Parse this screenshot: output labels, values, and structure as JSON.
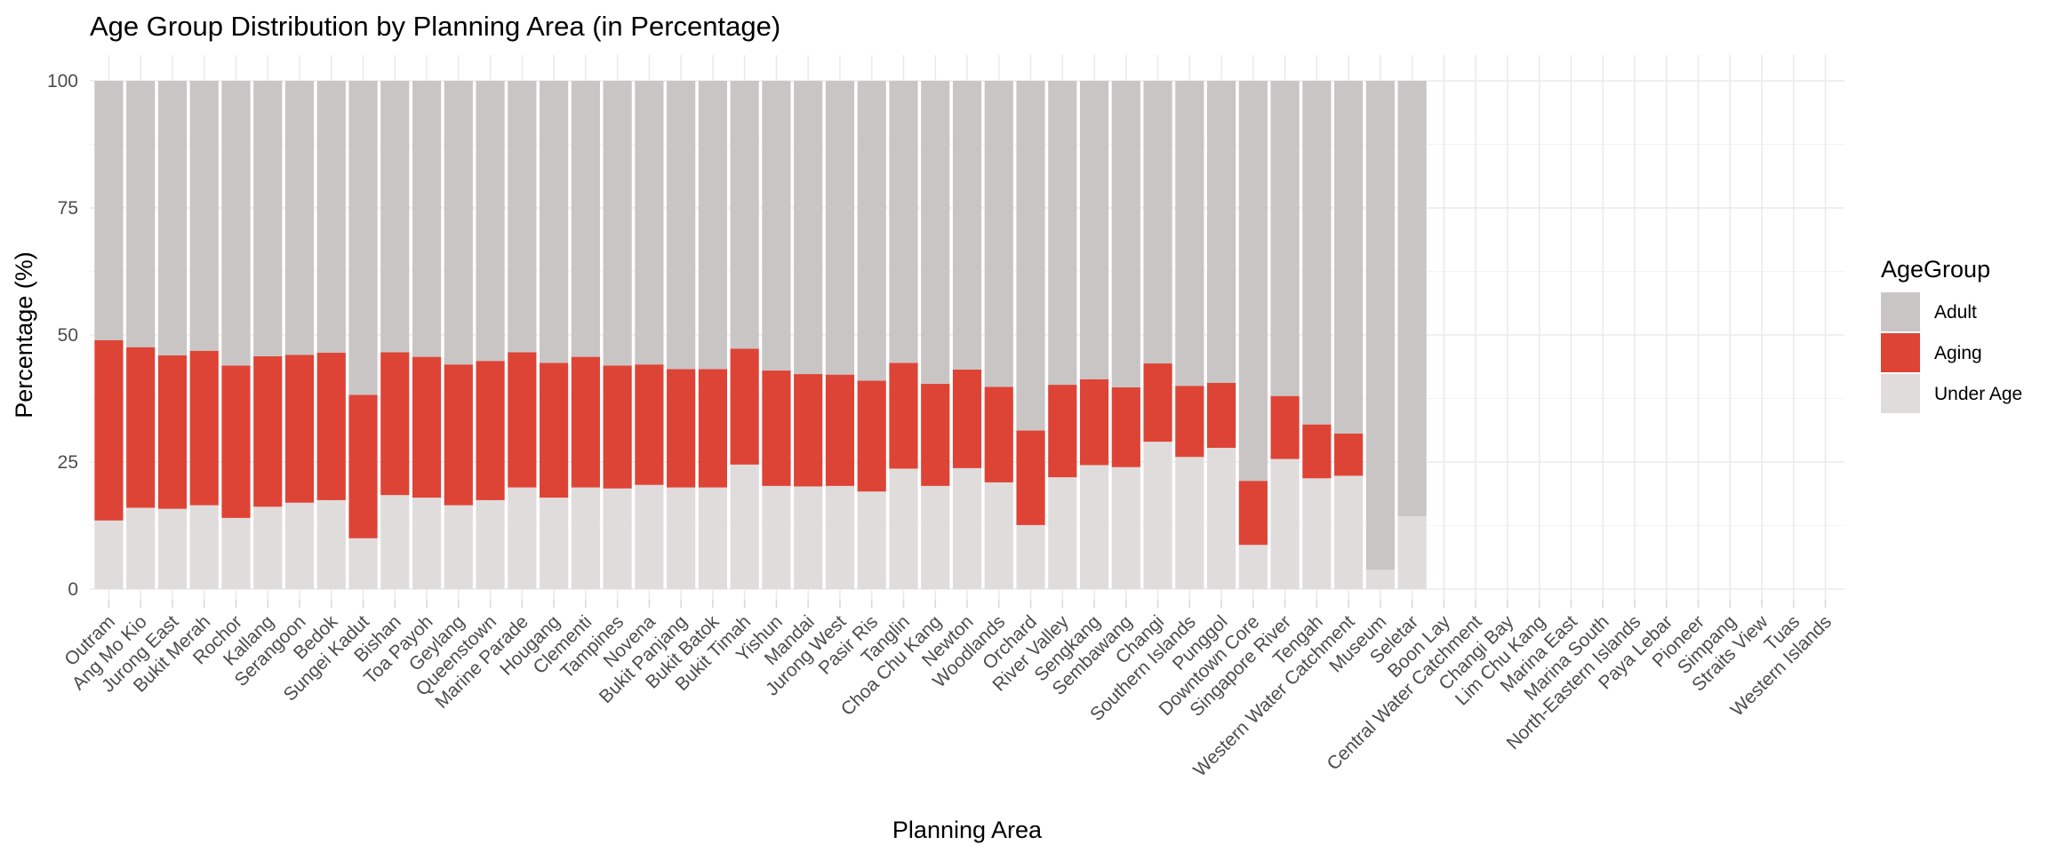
{
  "chart_data": {
    "type": "bar",
    "stacked": true,
    "title": "Age Group Distribution by Planning Area (in Percentage)",
    "xlabel": "Planning Area",
    "ylabel": "Percentage (%)",
    "ylim": [
      0,
      100
    ],
    "yticks": [
      0,
      25,
      50,
      75,
      100
    ],
    "grid": true,
    "legend": {
      "title": "AgeGroup",
      "position": "right"
    },
    "categories": [
      "Outram",
      "Ang Mo Kio",
      "Jurong East",
      "Bukit Merah",
      "Rochor",
      "Kallang",
      "Serangoon",
      "Bedok",
      "Sungei Kadut",
      "Bishan",
      "Toa Payoh",
      "Geylang",
      "Queenstown",
      "Marine Parade",
      "Hougang",
      "Clementi",
      "Tampines",
      "Novena",
      "Bukit Panjang",
      "Bukit Batok",
      "Bukit Timah",
      "Yishun",
      "Mandai",
      "Jurong West",
      "Pasir Ris",
      "Tanglin",
      "Choa Chu Kang",
      "Newton",
      "Woodlands",
      "Orchard",
      "River Valley",
      "Sengkang",
      "Sembawang",
      "Changi",
      "Southern Islands",
      "Punggol",
      "Downtown Core",
      "Singapore River",
      "Tengah",
      "Western Water Catchment",
      "Museum",
      "Seletar",
      "Boon Lay",
      "Central Water Catchment",
      "Changi Bay",
      "Lim Chu Kang",
      "Marina East",
      "Marina South",
      "North-Eastern Islands",
      "Paya Lebar",
      "Pioneer",
      "Simpang",
      "Straits View",
      "Tuas",
      "Western Islands"
    ],
    "series": [
      {
        "name": "Under Age",
        "color": "#e0dcdc",
        "values": [
          13.5,
          16,
          15.8,
          16.5,
          14,
          16.2,
          17,
          17.5,
          10,
          18.5,
          18,
          16.5,
          17.5,
          20,
          18,
          20,
          19.8,
          20.5,
          20,
          20,
          24.5,
          20.3,
          20.2,
          20.3,
          19.2,
          23.7,
          20.3,
          23.8,
          21,
          12.6,
          22,
          24.4,
          24,
          29,
          26,
          27.8,
          8.7,
          25.6,
          21.8,
          22.3,
          3.8,
          14.3,
          0,
          0,
          0,
          0,
          0,
          0,
          0,
          0,
          0,
          0,
          0,
          0,
          0
        ]
      },
      {
        "name": "Aging",
        "color": "#dd4436",
        "values": [
          35.5,
          31.6,
          30.2,
          30.4,
          30,
          29.6,
          29.1,
          29,
          28.2,
          28.1,
          27.7,
          27.7,
          27.4,
          26.6,
          26.5,
          25.7,
          24.2,
          23.7,
          23.3,
          23.3,
          22.8,
          22.7,
          22.1,
          21.9,
          21.8,
          20.8,
          20.1,
          19.4,
          18.8,
          18.6,
          18.2,
          16.9,
          15.7,
          15.4,
          14,
          12.8,
          12.6,
          12.4,
          10.6,
          8.3,
          0,
          0,
          0,
          0,
          0,
          0,
          0,
          0,
          0,
          0,
          0,
          0,
          0,
          0,
          0
        ]
      },
      {
        "name": "Adult",
        "color": "#c9c5c4",
        "values": [
          51,
          52.4,
          54,
          53.1,
          56,
          54.2,
          53.9,
          53.5,
          61.8,
          53.4,
          54.3,
          55.8,
          55.1,
          53.4,
          55.5,
          54.3,
          56,
          55.8,
          56.7,
          56.7,
          52.7,
          57,
          57.7,
          57.8,
          59,
          55.5,
          59.6,
          56.8,
          60.2,
          68.8,
          59.8,
          58.7,
          60.3,
          55.6,
          60,
          59.4,
          78.7,
          62,
          67.6,
          69.4,
          96.2,
          85.7,
          0,
          0,
          0,
          0,
          0,
          0,
          0,
          0,
          0,
          0,
          0,
          0,
          0
        ]
      }
    ],
    "legend_order": [
      "Adult",
      "Aging",
      "Under Age"
    ]
  }
}
